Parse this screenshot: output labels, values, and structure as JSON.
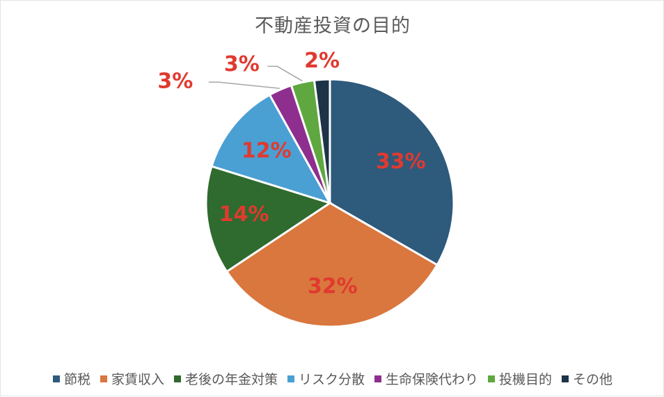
{
  "chart_data": {
    "type": "pie",
    "title": "不動産投資の目的",
    "legend_position": "bottom",
    "label_color": "#e03a2f",
    "slices": [
      {
        "name": "節税",
        "value": 33,
        "label": "33%",
        "color": "#2e5a7c"
      },
      {
        "name": "家賃収入",
        "value": 32,
        "label": "32%",
        "color": "#d9773e"
      },
      {
        "name": "老後の年金対策",
        "value": 14,
        "label": "14%",
        "color": "#2f6a2f"
      },
      {
        "name": "リスク分散",
        "value": 12,
        "label": "12%",
        "color": "#4a9fd3"
      },
      {
        "name": "生命保険代わり",
        "value": 3,
        "label": "3%",
        "color": "#8e2f8f"
      },
      {
        "name": "投機目的",
        "value": 3,
        "label": "3%",
        "color": "#5fa840"
      },
      {
        "name": "その他",
        "value": 2,
        "label": "2%",
        "color": "#1d3347"
      }
    ]
  }
}
